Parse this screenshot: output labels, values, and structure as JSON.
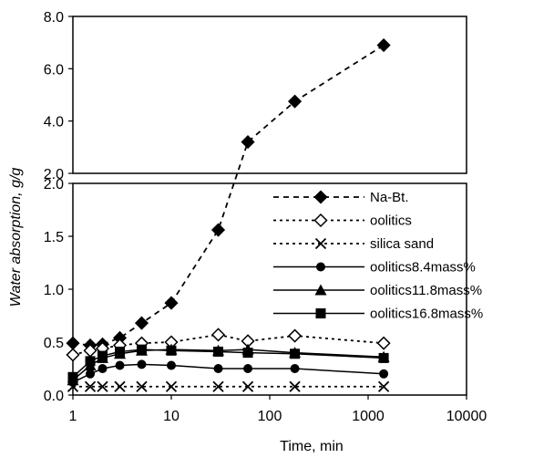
{
  "chart_data": {
    "type": "line",
    "xlabel": "Time, min",
    "ylabel": "Water absorption, g/g",
    "x_scale": "log",
    "xlim": [
      1,
      10000
    ],
    "x_ticks": [
      "1",
      "10",
      "100",
      "1000",
      "10000"
    ],
    "panels": [
      {
        "name": "upper",
        "ylim": [
          2.0,
          8.0
        ],
        "y_ticks": [
          "8.0",
          "6.0",
          "4.0",
          "2.0"
        ]
      },
      {
        "name": "lower",
        "ylim": [
          0.0,
          2.0
        ],
        "y_ticks": [
          "2.0",
          "1.5",
          "1.0",
          "0.5",
          "0.0"
        ]
      }
    ],
    "grid": false,
    "legend_position": "right, inside lower panel",
    "series": [
      {
        "name": "Na-Bt.",
        "marker": "diamond-filled",
        "line": "dashed",
        "x": [
          1,
          1.5,
          2,
          3,
          5,
          10,
          30,
          60,
          180,
          1440
        ],
        "y": [
          0.49,
          0.47,
          0.48,
          0.54,
          0.68,
          0.87,
          1.56,
          3.2,
          4.75,
          6.9
        ]
      },
      {
        "name": "oolitics",
        "marker": "diamond-open",
        "line": "dotted",
        "x": [
          1,
          1.5,
          2,
          3,
          5,
          10,
          30,
          60,
          180,
          1440
        ],
        "y": [
          0.38,
          0.42,
          0.44,
          0.47,
          0.49,
          0.5,
          0.57,
          0.51,
          0.56,
          0.49
        ]
      },
      {
        "name": "silica sand",
        "marker": "x",
        "line": "dotted",
        "x": [
          1,
          1.5,
          2,
          3,
          5,
          10,
          30,
          60,
          180,
          1440
        ],
        "y": [
          0.08,
          0.08,
          0.08,
          0.08,
          0.08,
          0.08,
          0.08,
          0.08,
          0.08,
          0.08
        ]
      },
      {
        "name": "oolitics8.4mass%",
        "marker": "circle-filled",
        "line": "solid",
        "x": [
          1,
          1.5,
          2,
          3,
          5,
          10,
          30,
          60,
          180,
          1440
        ],
        "y": [
          0.12,
          0.2,
          0.25,
          0.28,
          0.29,
          0.28,
          0.25,
          0.25,
          0.25,
          0.2
        ]
      },
      {
        "name": "oolitics11.8mass%",
        "marker": "triangle-filled",
        "line": "solid",
        "x": [
          1,
          1.5,
          2,
          3,
          5,
          10,
          30,
          60,
          180,
          1440
        ],
        "y": [
          0.14,
          0.28,
          0.35,
          0.39,
          0.42,
          0.43,
          0.42,
          0.43,
          0.4,
          0.36
        ]
      },
      {
        "name": "oolitics16.8mass%",
        "marker": "square-filled",
        "line": "solid",
        "x": [
          1,
          1.5,
          2,
          3,
          5,
          10,
          30,
          60,
          180,
          1440
        ],
        "y": [
          0.17,
          0.32,
          0.37,
          0.41,
          0.43,
          0.42,
          0.41,
          0.4,
          0.39,
          0.35
        ]
      }
    ]
  },
  "colors": {
    "ink": "#000000",
    "background": "#ffffff"
  }
}
